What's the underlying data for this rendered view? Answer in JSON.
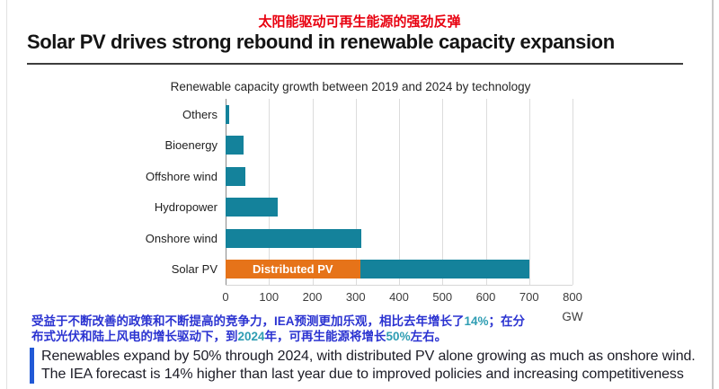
{
  "header": {
    "cn_title": "太阳能驱动可再生能源的强劲反弹",
    "title": "Solar PV drives strong rebound in renewable capacity expansion"
  },
  "chart_data": {
    "type": "bar",
    "orientation": "horizontal",
    "title": "Renewable capacity growth between 2019 and 2024 by technology",
    "xlabel": "GW",
    "xlim": [
      0,
      800
    ],
    "xticks": [
      0,
      100,
      200,
      300,
      400,
      500,
      600,
      700,
      800
    ],
    "grid": "vertical gridlines every 100 GW",
    "categories": [
      "Others",
      "Bioenergy",
      "Offshore wind",
      "Hydropower",
      "Onshore wind",
      "Solar PV"
    ],
    "bar_color": "#14829b",
    "highlight_color": "#e67319",
    "bars": [
      {
        "category": "Others",
        "segments": [
          {
            "value": 8,
            "color": "#14829b"
          }
        ]
      },
      {
        "category": "Bioenergy",
        "segments": [
          {
            "value": 42,
            "color": "#14829b"
          }
        ]
      },
      {
        "category": "Offshore wind",
        "segments": [
          {
            "value": 45,
            "color": "#14829b"
          }
        ]
      },
      {
        "category": "Hydropower",
        "segments": [
          {
            "value": 121,
            "color": "#14829b"
          }
        ]
      },
      {
        "category": "Onshore wind",
        "segments": [
          {
            "value": 312,
            "color": "#14829b"
          }
        ]
      },
      {
        "category": "Solar PV",
        "segments": [
          {
            "value": 310,
            "color": "#e67319",
            "label": "Distributed PV"
          },
          {
            "value": 390,
            "color": "#14829b"
          }
        ]
      }
    ]
  },
  "note_cn": {
    "lines": [
      [
        {
          "t": "受益于不断改善的政策和不断提高的竞争力，IEA预测更加乐观，相比去年增长了",
          "c": "#2b33d1"
        },
        {
          "t": "14%",
          "c": "#2e9db3"
        },
        {
          "t": "；在分",
          "c": "#2b33d1"
        }
      ],
      [
        {
          "t": "布式光伏和陆上风电的增长驱动下，到",
          "c": "#2b33d1"
        },
        {
          "t": "2024",
          "c": "#2e9db3"
        },
        {
          "t": "年，可再生能源将增长",
          "c": "#2b33d1"
        },
        {
          "t": "50%",
          "c": "#2e9db3"
        },
        {
          "t": "左右。",
          "c": "#2b33d1"
        }
      ]
    ]
  },
  "callout": {
    "accent_color": "#2159d6",
    "line1": "Renewables expand by 50% through 2024, with distributed PV alone growing as much as onshore wind.",
    "line2": "The IEA forecast is 14% higher than last year due to improved policies and increasing competitiveness"
  }
}
